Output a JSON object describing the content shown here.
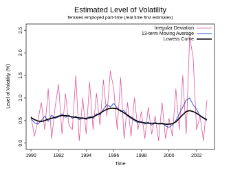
{
  "chart_data": {
    "type": "line",
    "title": "Estimated Level of Volatility",
    "subtitle": "females employed part-time (real time first estimates)",
    "x_label": "Time",
    "y_label": "Level of Volatility (%)",
    "legend": "top-right",
    "x": [
      1990,
      1990.25,
      1990.5,
      1990.75,
      1991,
      1991.25,
      1991.5,
      1991.75,
      1992,
      1992.25,
      1992.5,
      1992.75,
      1993,
      1993.25,
      1993.5,
      1993.75,
      1994,
      1994.25,
      1994.5,
      1994.75,
      1995,
      1995.25,
      1995.5,
      1995.75,
      1996,
      1996.25,
      1996.5,
      1996.75,
      1997,
      1997.25,
      1997.5,
      1997.75,
      1998,
      1998.25,
      1998.5,
      1998.75,
      1999,
      1999.25,
      1999.5,
      1999.75,
      2000,
      2000.25,
      2000.5,
      2000.75,
      2001,
      2001.25,
      2001.5,
      2001.75,
      2002,
      2002.25,
      2002.5,
      2002.75
    ],
    "series": [
      {
        "name": "Irregular Deviation",
        "color": "#e0559a",
        "width": 0.8,
        "values": [
          0.6,
          0.15,
          0.5,
          0.9,
          0.3,
          1.2,
          0.1,
          0.8,
          1.3,
          0.2,
          1.1,
          0.4,
          0.3,
          1.5,
          0.05,
          1.0,
          0.2,
          1.35,
          0.3,
          1.1,
          0.4,
          1.4,
          0.6,
          1.6,
          1.2,
          0.3,
          1.45,
          0.1,
          0.9,
          0.15,
          1.0,
          0.3,
          0.7,
          0.1,
          0.8,
          0.2,
          0.6,
          0.05,
          0.9,
          0.1,
          0.55,
          0.15,
          1.2,
          0.3,
          1.5,
          0.2,
          2.35,
          1.9,
          0.3,
          0.6,
          0.05,
          0.95
        ]
      },
      {
        "name": "13-term Moving Average",
        "color": "#3355cc",
        "width": 1,
        "values": [
          0.55,
          0.45,
          0.42,
          0.5,
          0.6,
          0.48,
          0.62,
          0.55,
          0.58,
          0.65,
          0.57,
          0.62,
          0.55,
          0.6,
          0.52,
          0.57,
          0.52,
          0.6,
          0.55,
          0.65,
          0.62,
          0.75,
          0.85,
          0.8,
          0.88,
          0.78,
          0.7,
          0.72,
          0.6,
          0.55,
          0.5,
          0.45,
          0.48,
          0.42,
          0.47,
          0.4,
          0.46,
          0.42,
          0.45,
          0.38,
          0.35,
          0.4,
          0.5,
          0.65,
          0.8,
          0.95,
          1.0,
          0.85,
          0.75,
          0.6,
          0.55,
          0.5
        ]
      },
      {
        "name": "Lowess Curve",
        "color": "#000000",
        "width": 1.6,
        "values": [
          0.57,
          0.52,
          0.49,
          0.48,
          0.5,
          0.53,
          0.55,
          0.57,
          0.6,
          0.61,
          0.61,
          0.6,
          0.58,
          0.57,
          0.56,
          0.55,
          0.55,
          0.56,
          0.58,
          0.62,
          0.66,
          0.71,
          0.75,
          0.77,
          0.77,
          0.76,
          0.72,
          0.67,
          0.62,
          0.57,
          0.52,
          0.48,
          0.46,
          0.45,
          0.44,
          0.44,
          0.44,
          0.43,
          0.43,
          0.42,
          0.42,
          0.43,
          0.47,
          0.55,
          0.63,
          0.7,
          0.72,
          0.7,
          0.66,
          0.61,
          0.56,
          0.52
        ]
      }
    ],
    "xlim": [
      1989.65,
      2003.3
    ],
    "ylim": [
      -0.14,
      2.64
    ],
    "xticks": [
      1990,
      1992,
      1994,
      1996,
      1998,
      2000,
      2002
    ],
    "yticks": [
      {
        "value": 0,
        "label": "0.0"
      },
      0.5,
      {
        "value": 1,
        "label": "1.0"
      },
      1.5,
      {
        "value": 2,
        "label": "2.0"
      },
      2.5
    ]
  }
}
